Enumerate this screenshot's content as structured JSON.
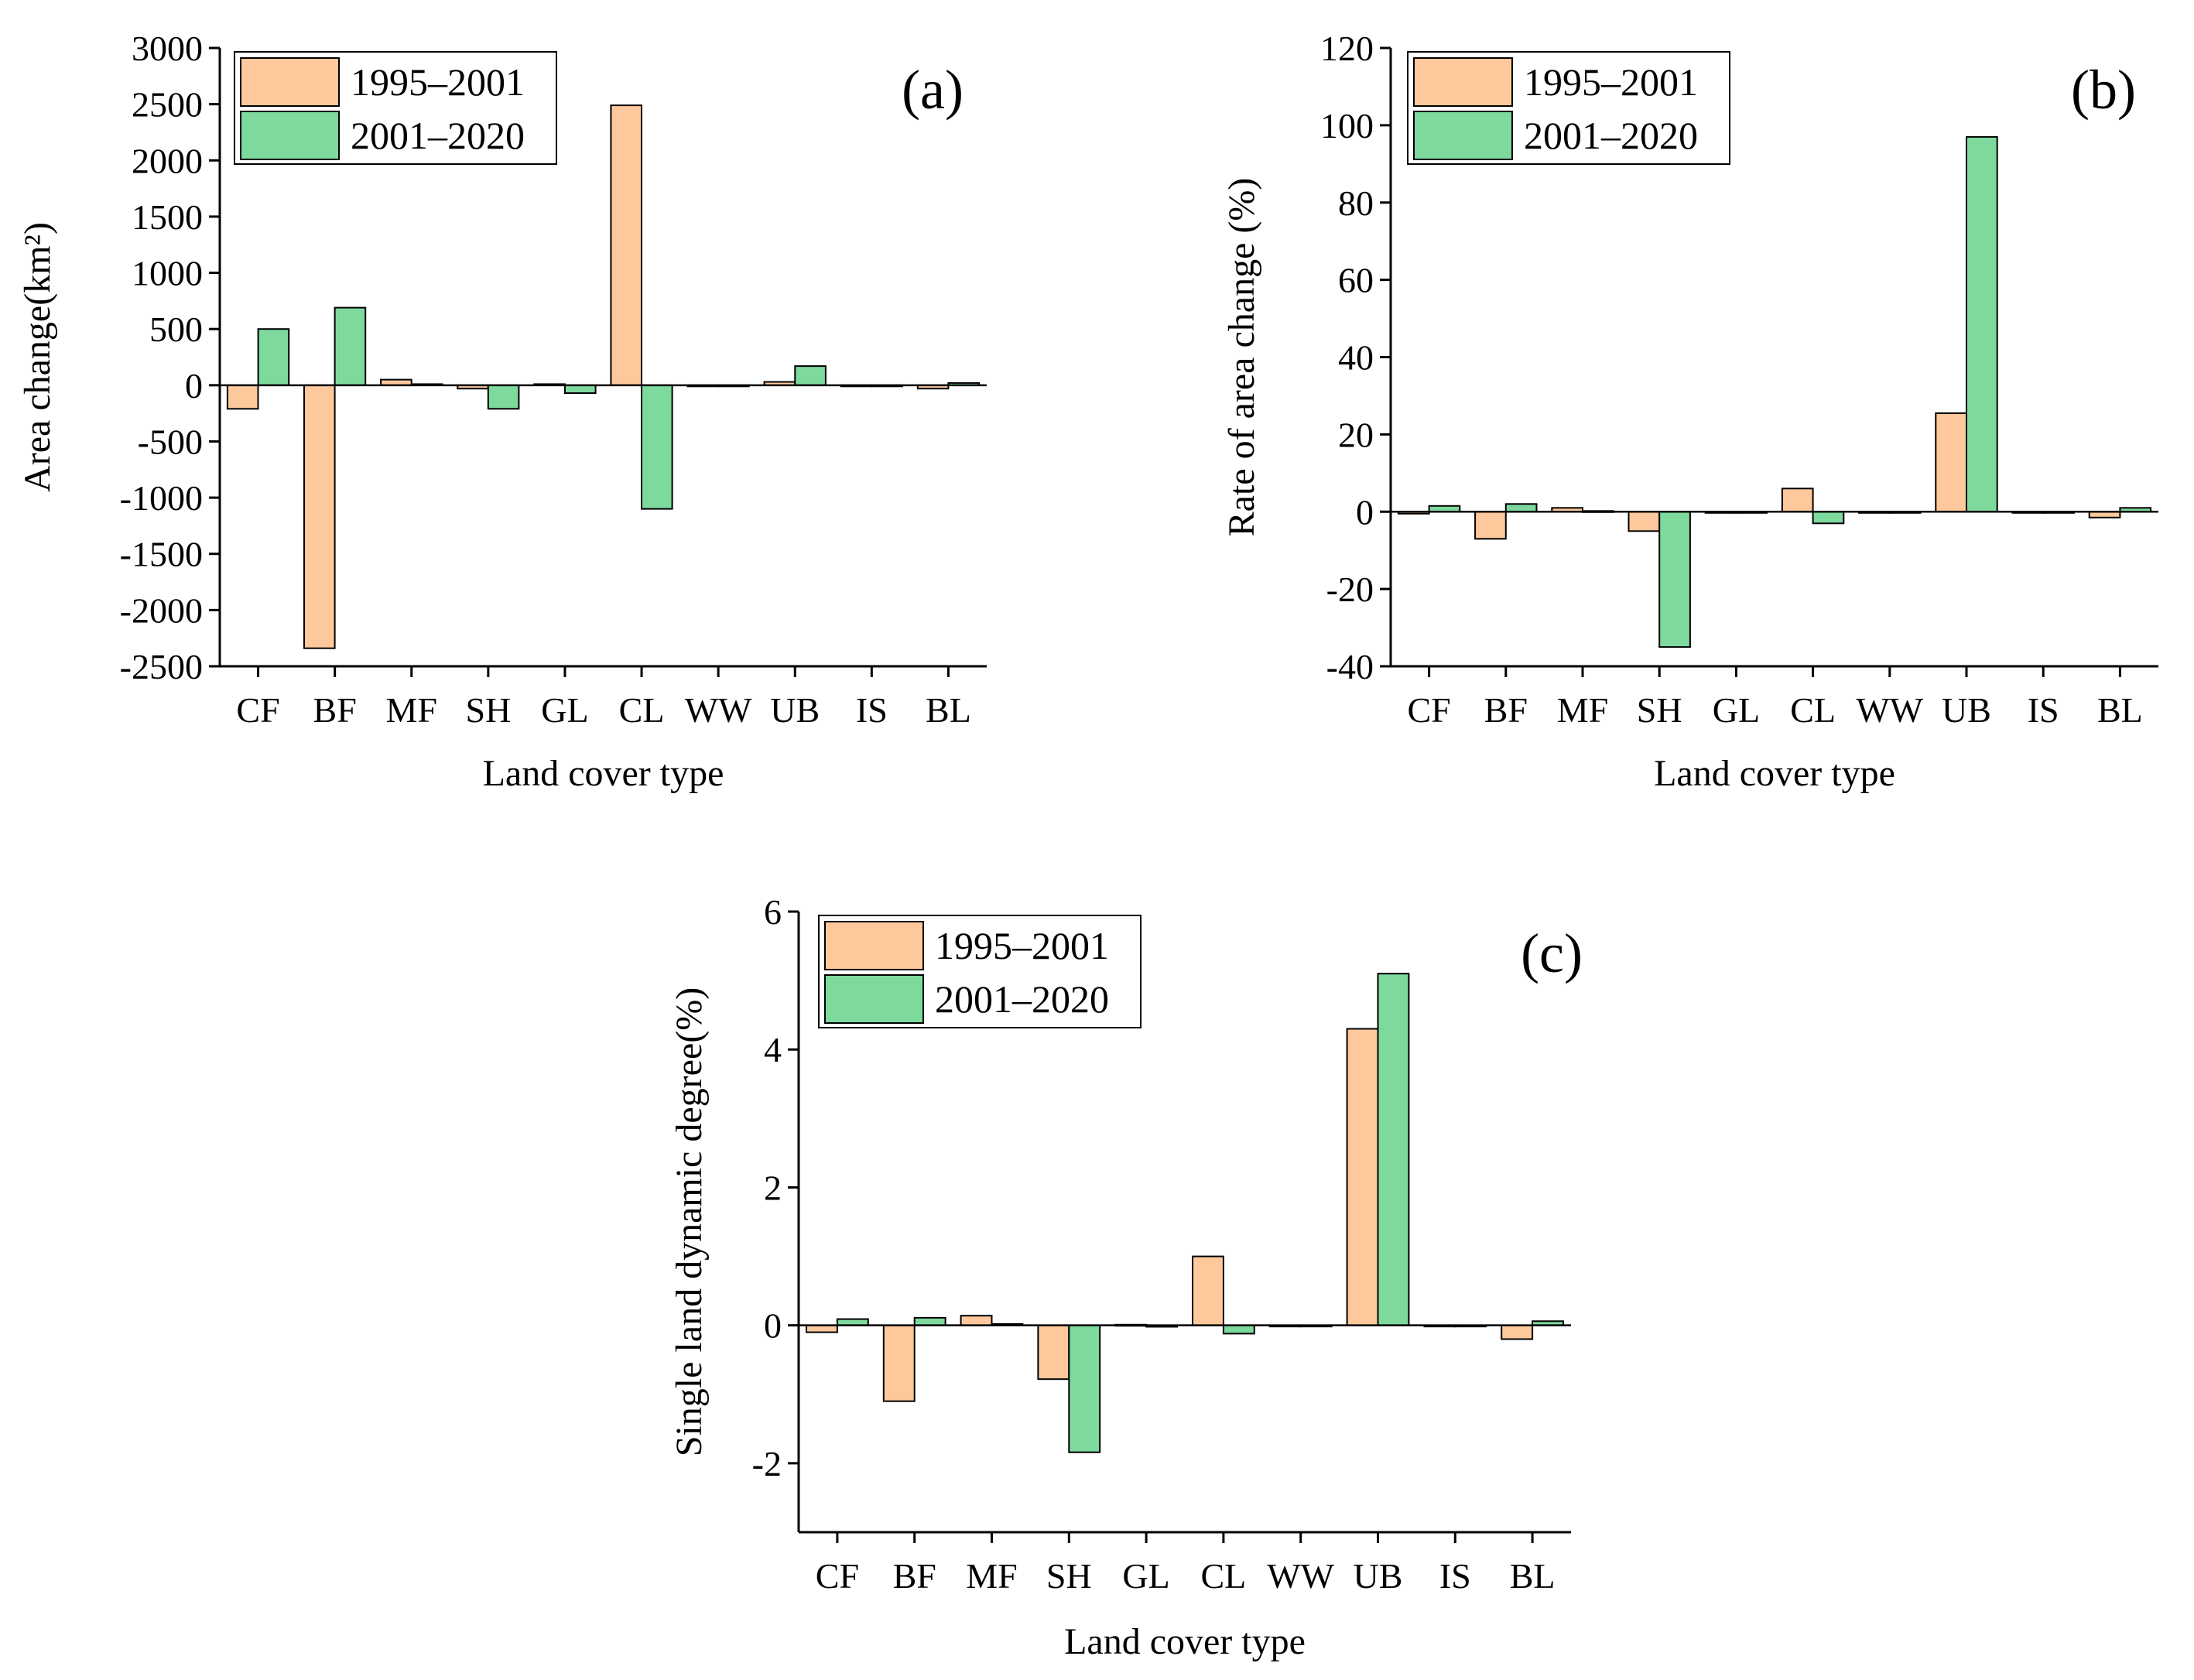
{
  "colors": {
    "series_1995_2001": "#fdc89b",
    "series_2001_2020": "#7ed99d",
    "axis": "#000000",
    "background": "#ffffff"
  },
  "chart_data": [
    {
      "type": "bar",
      "panel_label": "(a)",
      "title": "",
      "xlabel": "Land cover type",
      "ylabel": "Area change(km²)",
      "categories": [
        "CF",
        "BF",
        "MF",
        "SH",
        "GL",
        "CL",
        "WW",
        "UB",
        "IS",
        "BL"
      ],
      "series": [
        {
          "name": "1995–2001",
          "values": [
            -210,
            -2340,
            50,
            -30,
            10,
            2490,
            0,
            30,
            0,
            -30
          ]
        },
        {
          "name": "2001–2020",
          "values": [
            500,
            690,
            10,
            -210,
            -70,
            -1100,
            0,
            170,
            0,
            20
          ]
        }
      ],
      "ylim": [
        -2500,
        3000
      ],
      "yticks": [
        3000,
        2500,
        2000,
        1500,
        1000,
        500,
        0,
        -500,
        -1000,
        -1500,
        -2000,
        -2500
      ],
      "legend": "top-left",
      "grid": false
    },
    {
      "type": "bar",
      "panel_label": "(b)",
      "title": "",
      "xlabel": "Land cover type",
      "ylabel": "Rate of area change (%)",
      "categories": [
        "CF",
        "BF",
        "MF",
        "SH",
        "GL",
        "CL",
        "WW",
        "UB",
        "IS",
        "BL"
      ],
      "series": [
        {
          "name": "1995–2001",
          "values": [
            -0.5,
            -7,
            1,
            -5,
            -0.3,
            6,
            0,
            25.5,
            0,
            -1.5
          ]
        },
        {
          "name": "2001–2020",
          "values": [
            1.5,
            2,
            0.2,
            -35,
            -0.3,
            -3,
            0,
            97,
            0,
            1
          ]
        }
      ],
      "ylim": [
        -40,
        120
      ],
      "yticks": [
        120,
        100,
        80,
        60,
        40,
        20,
        0,
        -20,
        -40
      ],
      "legend": "top-left",
      "grid": false
    },
    {
      "type": "bar",
      "panel_label": "(c)",
      "title": "",
      "xlabel": "Land cover type",
      "ylabel": "Single land dynamic degree(%)",
      "categories": [
        "CF",
        "BF",
        "MF",
        "SH",
        "GL",
        "CL",
        "WW",
        "UB",
        "IS",
        "BL"
      ],
      "series": [
        {
          "name": "1995–2001",
          "values": [
            -0.1,
            -1.1,
            0.14,
            -0.78,
            0.01,
            1.0,
            0,
            4.3,
            0,
            -0.2
          ]
        },
        {
          "name": "2001–2020",
          "values": [
            0.09,
            0.11,
            0.02,
            -1.84,
            -0.02,
            -0.12,
            0,
            5.1,
            0,
            0.06
          ]
        }
      ],
      "ylim": [
        -3,
        6
      ],
      "yticks": [
        6,
        4,
        2,
        0,
        -2
      ],
      "legend": "top-left",
      "grid": false
    }
  ]
}
